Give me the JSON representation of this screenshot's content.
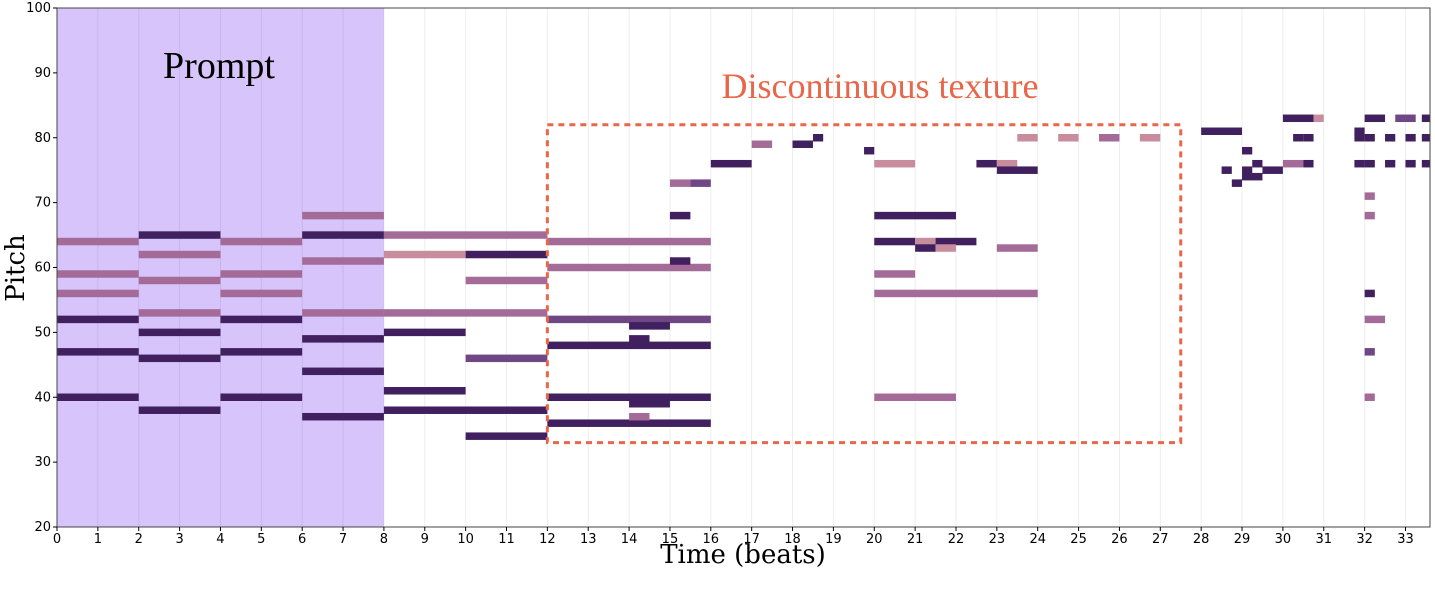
{
  "chart_data": {
    "type": "piano-roll",
    "xlabel": "Time (beats)",
    "ylabel": "Pitch",
    "xlim": [
      0,
      33.6
    ],
    "ylim": [
      20,
      100
    ],
    "xticks": [
      0,
      1,
      2,
      3,
      4,
      5,
      6,
      7,
      8,
      9,
      10,
      11,
      12,
      13,
      14,
      15,
      16,
      17,
      18,
      19,
      20,
      21,
      22,
      23,
      24,
      25,
      26,
      27,
      28,
      29,
      30,
      31,
      32,
      33
    ],
    "yticks": [
      20,
      30,
      40,
      50,
      60,
      70,
      80,
      90,
      100
    ],
    "grid": "vertical lines at each beat",
    "prompt_region": {
      "label": "Prompt",
      "x": [
        0,
        8
      ],
      "color": "#d7c4fb"
    },
    "annotation": {
      "label": "Discontinuous texture",
      "x": [
        12,
        27.5
      ],
      "y": [
        33,
        82
      ],
      "color": "#e8674a"
    },
    "colors": {
      "dark": "#40205e",
      "mid": "#6f4785",
      "light": "#a56b98",
      "pale": "#c88d9c"
    },
    "notes": [
      {
        "start": 0,
        "end": 2,
        "pitch": 64,
        "c": "light"
      },
      {
        "start": 0,
        "end": 2,
        "pitch": 59,
        "c": "light"
      },
      {
        "start": 0,
        "end": 2,
        "pitch": 56,
        "c": "light"
      },
      {
        "start": 0,
        "end": 2,
        "pitch": 52,
        "c": "dark"
      },
      {
        "start": 0,
        "end": 2,
        "pitch": 47,
        "c": "dark"
      },
      {
        "start": 0,
        "end": 2,
        "pitch": 40,
        "c": "dark"
      },
      {
        "start": 2,
        "end": 4,
        "pitch": 65,
        "c": "dark"
      },
      {
        "start": 2,
        "end": 4,
        "pitch": 62,
        "c": "light"
      },
      {
        "start": 2,
        "end": 4,
        "pitch": 58,
        "c": "light"
      },
      {
        "start": 2,
        "end": 4,
        "pitch": 53,
        "c": "light"
      },
      {
        "start": 2,
        "end": 4,
        "pitch": 50,
        "c": "dark"
      },
      {
        "start": 2,
        "end": 4,
        "pitch": 46,
        "c": "dark"
      },
      {
        "start": 2,
        "end": 4,
        "pitch": 38,
        "c": "dark"
      },
      {
        "start": 4,
        "end": 6,
        "pitch": 64,
        "c": "light"
      },
      {
        "start": 4,
        "end": 6,
        "pitch": 59,
        "c": "light"
      },
      {
        "start": 4,
        "end": 6,
        "pitch": 56,
        "c": "light"
      },
      {
        "start": 4,
        "end": 6,
        "pitch": 52,
        "c": "dark"
      },
      {
        "start": 4,
        "end": 6,
        "pitch": 47,
        "c": "dark"
      },
      {
        "start": 4,
        "end": 6,
        "pitch": 40,
        "c": "dark"
      },
      {
        "start": 6,
        "end": 8,
        "pitch": 68,
        "c": "light"
      },
      {
        "start": 6,
        "end": 8,
        "pitch": 65,
        "c": "dark"
      },
      {
        "start": 6,
        "end": 8,
        "pitch": 61,
        "c": "light"
      },
      {
        "start": 6,
        "end": 8,
        "pitch": 53,
        "c": "light"
      },
      {
        "start": 6,
        "end": 8,
        "pitch": 49,
        "c": "dark"
      },
      {
        "start": 6,
        "end": 8,
        "pitch": 44,
        "c": "dark"
      },
      {
        "start": 6,
        "end": 8,
        "pitch": 37,
        "c": "dark"
      },
      {
        "start": 8,
        "end": 12,
        "pitch": 65,
        "c": "light"
      },
      {
        "start": 8,
        "end": 10,
        "pitch": 62,
        "c": "pale"
      },
      {
        "start": 8,
        "end": 12,
        "pitch": 53,
        "c": "light"
      },
      {
        "start": 8,
        "end": 10,
        "pitch": 50,
        "c": "dark"
      },
      {
        "start": 8,
        "end": 10,
        "pitch": 41,
        "c": "dark"
      },
      {
        "start": 8,
        "end": 12,
        "pitch": 38,
        "c": "dark"
      },
      {
        "start": 10,
        "end": 12,
        "pitch": 62,
        "c": "dark"
      },
      {
        "start": 10,
        "end": 12,
        "pitch": 58,
        "c": "light"
      },
      {
        "start": 10,
        "end": 12,
        "pitch": 46,
        "c": "mid"
      },
      {
        "start": 10,
        "end": 12,
        "pitch": 34,
        "c": "dark"
      },
      {
        "start": 12,
        "end": 16,
        "pitch": 64,
        "c": "light"
      },
      {
        "start": 12,
        "end": 16,
        "pitch": 60,
        "c": "light"
      },
      {
        "start": 12,
        "end": 16,
        "pitch": 52,
        "c": "mid"
      },
      {
        "start": 12,
        "end": 16,
        "pitch": 48,
        "c": "dark"
      },
      {
        "start": 12,
        "end": 16,
        "pitch": 40,
        "c": "dark"
      },
      {
        "start": 12,
        "end": 16,
        "pitch": 36,
        "c": "dark"
      },
      {
        "start": 14,
        "end": 15,
        "pitch": 51,
        "c": "dark"
      },
      {
        "start": 14,
        "end": 14.5,
        "pitch": 49,
        "c": "dark"
      },
      {
        "start": 14,
        "end": 15,
        "pitch": 39,
        "c": "dark"
      },
      {
        "start": 14,
        "end": 14.5,
        "pitch": 37,
        "c": "light"
      },
      {
        "start": 15,
        "end": 15.5,
        "pitch": 73,
        "c": "light"
      },
      {
        "start": 15.5,
        "end": 16,
        "pitch": 73,
        "c": "mid"
      },
      {
        "start": 15,
        "end": 15.5,
        "pitch": 68,
        "c": "dark"
      },
      {
        "start": 15,
        "end": 15.5,
        "pitch": 61,
        "c": "dark"
      },
      {
        "start": 16,
        "end": 17,
        "pitch": 76,
        "c": "dark"
      },
      {
        "start": 17,
        "end": 17.5,
        "pitch": 79,
        "c": "light"
      },
      {
        "start": 18,
        "end": 18.5,
        "pitch": 79,
        "c": "dark"
      },
      {
        "start": 18.5,
        "end": 18.75,
        "pitch": 80,
        "c": "dark"
      },
      {
        "start": 19.75,
        "end": 20,
        "pitch": 78,
        "c": "dark"
      },
      {
        "start": 20,
        "end": 21,
        "pitch": 76,
        "c": "pale"
      },
      {
        "start": 20,
        "end": 22,
        "pitch": 68,
        "c": "dark"
      },
      {
        "start": 20,
        "end": 21,
        "pitch": 64,
        "c": "dark"
      },
      {
        "start": 20,
        "end": 21,
        "pitch": 59,
        "c": "light"
      },
      {
        "start": 20,
        "end": 24,
        "pitch": 56,
        "c": "light"
      },
      {
        "start": 20,
        "end": 22,
        "pitch": 40,
        "c": "light"
      },
      {
        "start": 21,
        "end": 21.5,
        "pitch": 64,
        "c": "pale"
      },
      {
        "start": 21,
        "end": 21.5,
        "pitch": 63,
        "c": "dark"
      },
      {
        "start": 21.5,
        "end": 22.5,
        "pitch": 64,
        "c": "dark"
      },
      {
        "start": 21.5,
        "end": 22,
        "pitch": 63,
        "c": "pale"
      },
      {
        "start": 22.5,
        "end": 23,
        "pitch": 76,
        "c": "dark"
      },
      {
        "start": 23,
        "end": 23.5,
        "pitch": 76,
        "c": "pale"
      },
      {
        "start": 23,
        "end": 24,
        "pitch": 75,
        "c": "dark"
      },
      {
        "start": 23,
        "end": 24,
        "pitch": 63,
        "c": "light"
      },
      {
        "start": 23.5,
        "end": 24,
        "pitch": 80,
        "c": "pale"
      },
      {
        "start": 24.5,
        "end": 25,
        "pitch": 80,
        "c": "pale"
      },
      {
        "start": 25.5,
        "end": 26,
        "pitch": 80,
        "c": "light"
      },
      {
        "start": 26.5,
        "end": 27,
        "pitch": 80,
        "c": "pale"
      },
      {
        "start": 28,
        "end": 29,
        "pitch": 81,
        "c": "dark"
      },
      {
        "start": 28.5,
        "end": 28.75,
        "pitch": 75,
        "c": "dark"
      },
      {
        "start": 28.75,
        "end": 29,
        "pitch": 73,
        "c": "dark"
      },
      {
        "start": 29,
        "end": 29.25,
        "pitch": 78,
        "c": "dark"
      },
      {
        "start": 29,
        "end": 29.25,
        "pitch": 75,
        "c": "dark"
      },
      {
        "start": 29,
        "end": 29.5,
        "pitch": 74,
        "c": "dark"
      },
      {
        "start": 29.25,
        "end": 29.5,
        "pitch": 76,
        "c": "dark"
      },
      {
        "start": 29.5,
        "end": 30,
        "pitch": 75,
        "c": "dark"
      },
      {
        "start": 30,
        "end": 30.5,
        "pitch": 76,
        "c": "light"
      },
      {
        "start": 30.5,
        "end": 30.75,
        "pitch": 76,
        "c": "dark"
      },
      {
        "start": 30.25,
        "end": 30.5,
        "pitch": 80,
        "c": "dark"
      },
      {
        "start": 30.5,
        "end": 30.75,
        "pitch": 80,
        "c": "dark"
      },
      {
        "start": 30,
        "end": 30.75,
        "pitch": 83,
        "c": "dark"
      },
      {
        "start": 30.75,
        "end": 31,
        "pitch": 83,
        "c": "pale"
      },
      {
        "start": 31.75,
        "end": 32,
        "pitch": 76,
        "c": "dark"
      },
      {
        "start": 31.75,
        "end": 32,
        "pitch": 81,
        "c": "dark"
      },
      {
        "start": 31.75,
        "end": 32,
        "pitch": 80,
        "c": "dark"
      },
      {
        "start": 32,
        "end": 32.5,
        "pitch": 83,
        "c": "dark"
      },
      {
        "start": 32,
        "end": 32.25,
        "pitch": 80,
        "c": "dark"
      },
      {
        "start": 32,
        "end": 32.25,
        "pitch": 76,
        "c": "dark"
      },
      {
        "start": 32,
        "end": 32.25,
        "pitch": 71,
        "c": "light"
      },
      {
        "start": 32,
        "end": 32.25,
        "pitch": 68,
        "c": "light"
      },
      {
        "start": 32,
        "end": 32.25,
        "pitch": 56,
        "c": "dark"
      },
      {
        "start": 32,
        "end": 32.5,
        "pitch": 52,
        "c": "light"
      },
      {
        "start": 32,
        "end": 32.25,
        "pitch": 47,
        "c": "mid"
      },
      {
        "start": 32,
        "end": 32.25,
        "pitch": 40,
        "c": "light"
      },
      {
        "start": 32.5,
        "end": 32.75,
        "pitch": 80,
        "c": "dark"
      },
      {
        "start": 32.5,
        "end": 32.75,
        "pitch": 76,
        "c": "dark"
      },
      {
        "start": 33,
        "end": 33.25,
        "pitch": 80,
        "c": "dark"
      },
      {
        "start": 33,
        "end": 33.25,
        "pitch": 76,
        "c": "dark"
      },
      {
        "start": 33,
        "end": 33.25,
        "pitch": 83,
        "c": "mid"
      },
      {
        "start": 32.75,
        "end": 33,
        "pitch": 83,
        "c": "mid"
      },
      {
        "start": 33.4,
        "end": 33.6,
        "pitch": 83,
        "c": "dark"
      },
      {
        "start": 33.4,
        "end": 33.6,
        "pitch": 80,
        "c": "dark"
      },
      {
        "start": 33.4,
        "end": 33.6,
        "pitch": 76,
        "c": "dark"
      }
    ]
  }
}
